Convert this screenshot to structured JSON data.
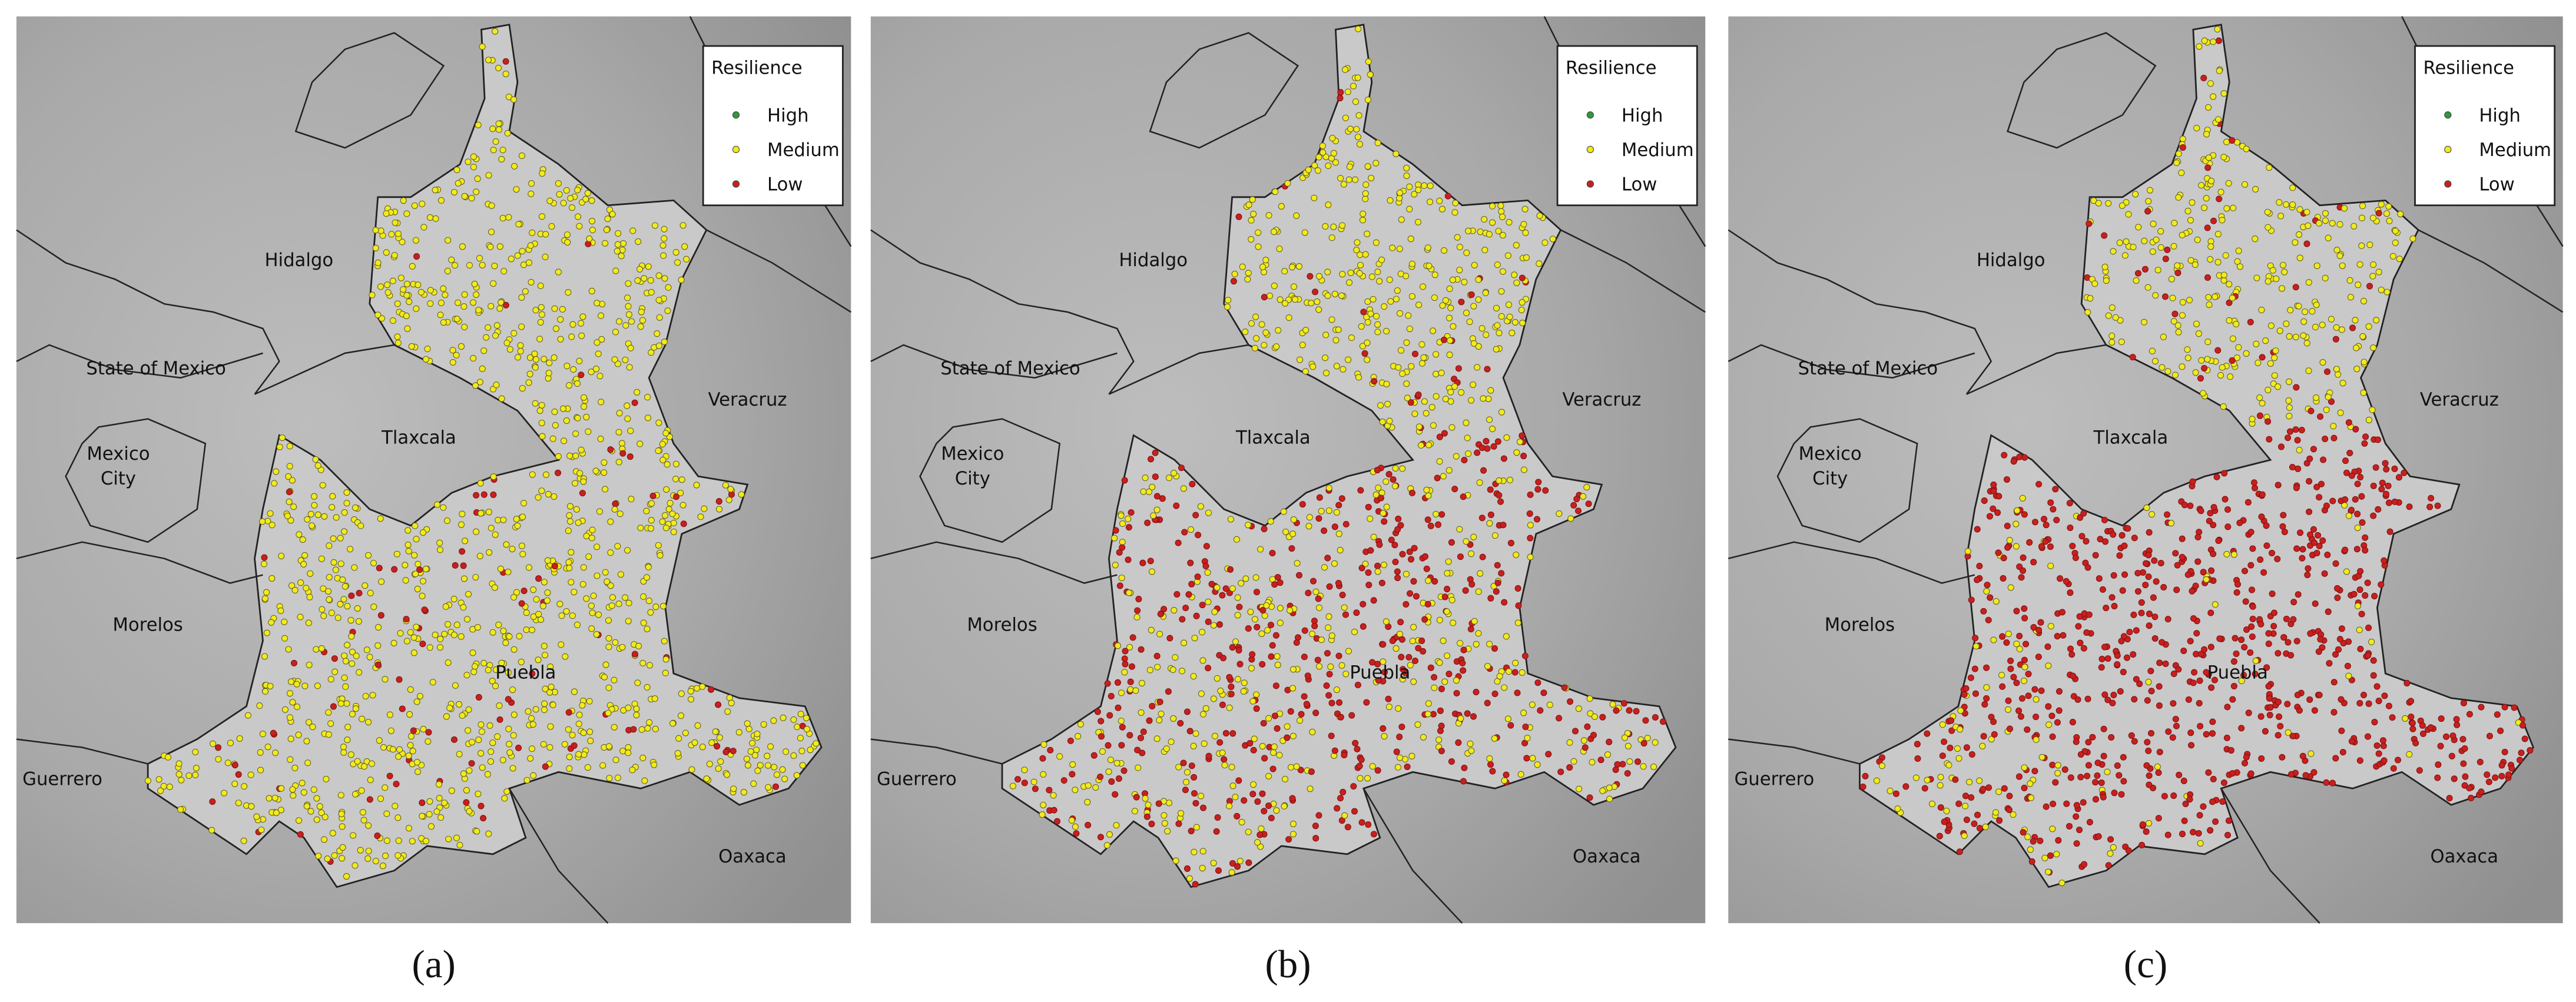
{
  "panels": [
    {
      "label": "(a)"
    },
    {
      "label": "(b)"
    },
    {
      "label": "(c)"
    }
  ],
  "legend": {
    "title": "Resilience",
    "items": [
      {
        "name": "High",
        "color": "#2e9a3a"
      },
      {
        "name": "Medium",
        "color": "#f2ea1c"
      },
      {
        "name": "Low",
        "color": "#c8201e"
      }
    ]
  },
  "regions": [
    {
      "lines": [
        "Hidalgo"
      ]
    },
    {
      "lines": [
        "State of Mexico"
      ]
    },
    {
      "lines": [
        "Mexico",
        "City"
      ]
    },
    {
      "lines": [
        "Tlaxcala"
      ]
    },
    {
      "lines": [
        "Veracruz"
      ]
    },
    {
      "lines": [
        "Morelos"
      ]
    },
    {
      "lines": [
        "Puebla"
      ]
    },
    {
      "lines": [
        "Guerrero"
      ]
    },
    {
      "lines": [
        "Oaxaca"
      ]
    }
  ]
}
